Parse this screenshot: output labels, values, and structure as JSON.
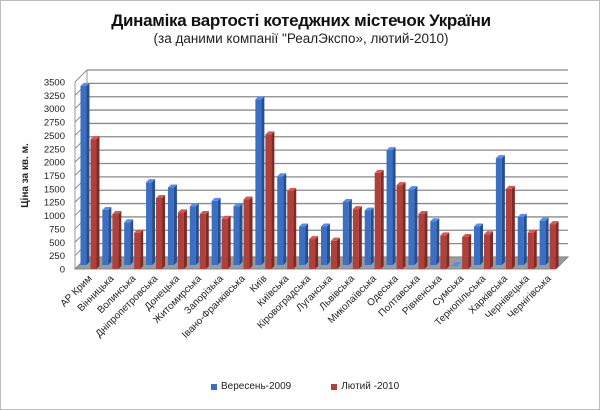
{
  "chart_data": {
    "type": "bar",
    "title": "Динаміка вартості котеджних містечок України",
    "subtitle": "(за даними компанії \"РеалЭкспо», лютий-2010)",
    "xlabel": "",
    "ylabel": "Ціна за кв. м.",
    "ylim": [
      0,
      3500
    ],
    "yticks": [
      0,
      250,
      500,
      750,
      1000,
      1250,
      1500,
      1750,
      2000,
      2250,
      2500,
      2750,
      3000,
      3250,
      3500
    ],
    "grid": true,
    "legend_position": "bottom",
    "categories": [
      "АР Крим",
      "Вінницька",
      "Волинська",
      "Дніпропетровська",
      "Донецька",
      "Житомирська",
      "Запорізька",
      "Івано-Франківська",
      "Київ",
      "Київська",
      "Кіровоградська",
      "Луганська",
      "Львівська",
      "Миколаївська",
      "Одеська",
      "Полтавська",
      "Рівненська",
      "Сумська",
      "Тернопільська",
      "Харківська",
      "Чернівецька",
      "Чернігівська"
    ],
    "series": [
      {
        "name": "Вересень-2009",
        "color": "#3a6fc4",
        "values": [
          3350,
          1030,
          800,
          1550,
          1450,
          1100,
          1200,
          1100,
          3100,
          1660,
          720,
          720,
          1180,
          1020,
          2150,
          1420,
          820,
          0,
          720,
          2000,
          900,
          830
        ]
      },
      {
        "name": "Лютий -2010",
        "color": "#b0403a",
        "values": [
          2430,
          1030,
          680,
          1330,
          1060,
          1030,
          940,
          1300,
          2520,
          1460,
          560,
          530,
          1120,
          1800,
          1570,
          1030,
          630,
          600,
          650,
          1500,
          680,
          840
        ]
      }
    ]
  }
}
